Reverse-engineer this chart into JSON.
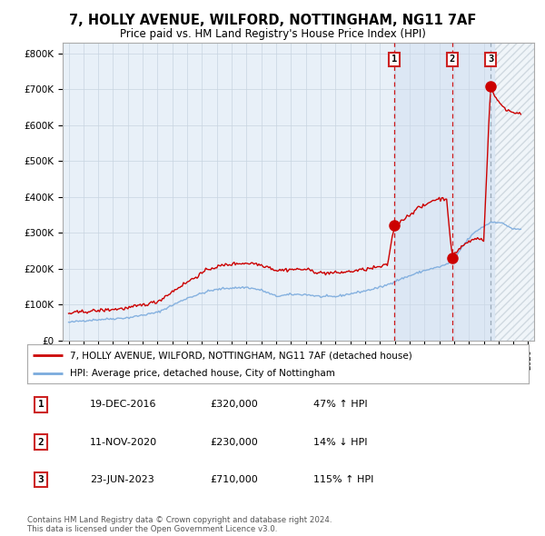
{
  "title": "7, HOLLY AVENUE, WILFORD, NOTTINGHAM, NG11 7AF",
  "subtitle": "Price paid vs. HM Land Registry's House Price Index (HPI)",
  "ylim": [
    0,
    830000
  ],
  "yticks": [
    0,
    100000,
    200000,
    300000,
    400000,
    500000,
    600000,
    700000,
    800000
  ],
  "ytick_labels": [
    "£0",
    "£100K",
    "£200K",
    "£300K",
    "£400K",
    "£500K",
    "£600K",
    "£700K",
    "£800K"
  ],
  "red_line_color": "#cc0000",
  "blue_line_color": "#7aaadd",
  "bg_color": "#e8f0f8",
  "hatch_bg_color": "#dde8f4",
  "grid_color": "#c8d4e0",
  "t1_year": 2016.97,
  "t2_year": 2020.875,
  "t3_year": 2023.46,
  "t1_price": 320000,
  "t2_price": 230000,
  "t3_price": 710000,
  "legend_red": "7, HOLLY AVENUE, WILFORD, NOTTINGHAM, NG11 7AF (detached house)",
  "legend_blue": "HPI: Average price, detached house, City of Nottingham",
  "table_rows": [
    {
      "num": "1",
      "date": "19-DEC-2016",
      "price": "£320,000",
      "change": "47% ↑ HPI"
    },
    {
      "num": "2",
      "date": "11-NOV-2020",
      "price": "£230,000",
      "change": "14% ↓ HPI"
    },
    {
      "num": "3",
      "date": "23-JUN-2023",
      "price": "£710,000",
      "change": "115% ↑ HPI"
    }
  ],
  "footer": "Contains HM Land Registry data © Crown copyright and database right 2024.\nThis data is licensed under the Open Government Licence v3.0.",
  "blue_keypoints": {
    "1995.0": 50000,
    "1996.0": 55000,
    "1997.0": 58000,
    "1999.0": 63000,
    "2001.0": 78000,
    "2003.0": 118000,
    "2004.5": 138000,
    "2005.5": 145000,
    "2007.0": 148000,
    "2008.0": 140000,
    "2009.0": 123000,
    "2010.0": 128000,
    "2011.0": 128000,
    "2012.0": 122000,
    "2013.0": 122000,
    "2014.0": 130000,
    "2015.0": 138000,
    "2016.0": 148000,
    "2016.5": 155000,
    "2017.0": 165000,
    "2018.0": 180000,
    "2019.0": 195000,
    "2020.0": 205000,
    "2020.5": 212000,
    "2021.0": 225000,
    "2021.5": 258000,
    "2022.0": 285000,
    "2022.5": 305000,
    "2023.0": 318000,
    "2023.5": 330000,
    "2024.0": 330000,
    "2024.5": 322000,
    "2025.0": 310000
  },
  "red_keypoints": {
    "1995.0": 75000,
    "1996.0": 80000,
    "1997.0": 83000,
    "1999.0": 90000,
    "2001.0": 108000,
    "2002.5": 150000,
    "2003.5": 175000,
    "2004.5": 200000,
    "2005.5": 210000,
    "2006.5": 215000,
    "2007.5": 215000,
    "2008.5": 205000,
    "2009.0": 195000,
    "2010.0": 198000,
    "2011.0": 198000,
    "2012.0": 188000,
    "2013.0": 188000,
    "2014.0": 192000,
    "2015.0": 198000,
    "2016.0": 205000,
    "2016.5": 210000,
    "2016.97": 320000,
    "2017.3": 330000,
    "2018.0": 350000,
    "2018.5": 368000,
    "2019.0": 375000,
    "2019.5": 390000,
    "2020.0": 395000,
    "2020.5": 395000,
    "2020.875": 230000,
    "2021.0": 240000,
    "2021.5": 262000,
    "2022.0": 275000,
    "2022.5": 285000,
    "2023.0": 280000,
    "2023.46": 710000,
    "2023.7": 685000,
    "2024.0": 665000,
    "2024.5": 645000,
    "2025.0": 635000
  }
}
